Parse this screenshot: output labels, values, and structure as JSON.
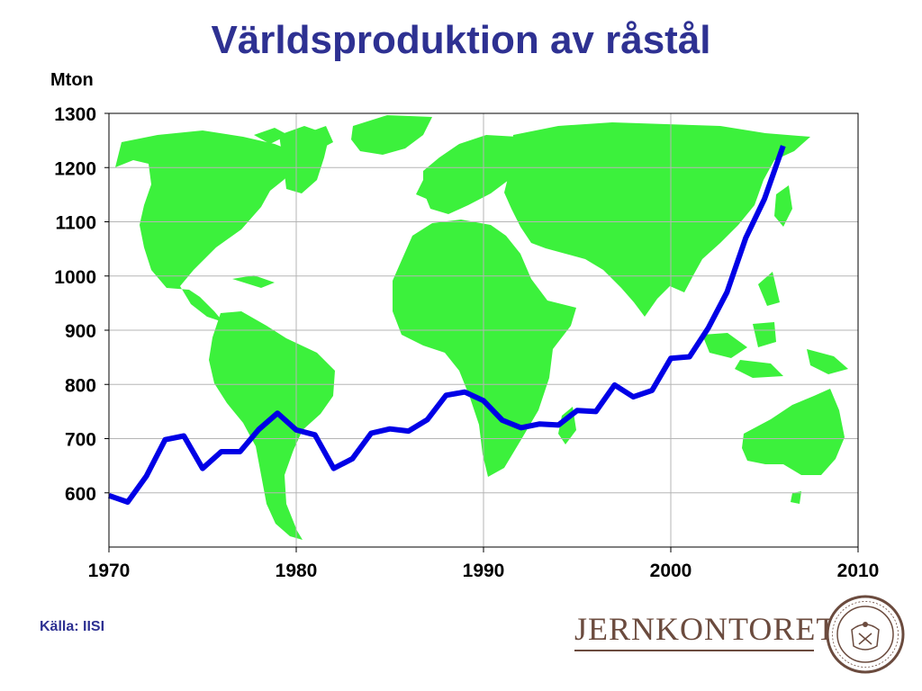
{
  "title": "Världsproduktion av råstål",
  "source": "Källa: IISI",
  "logo": {
    "text": "JERNKONTORET",
    "seal_text": "JERNCONTOIRETS SIGILL"
  },
  "colors": {
    "title": "#2e3192",
    "line": "#0000e6",
    "land": "#3cf13c",
    "logo": "#6b4b3e"
  },
  "chart_data": {
    "type": "line",
    "title": "Världsproduktion av råstål",
    "ylabel": "Mton",
    "xlabel": "",
    "xlim": [
      1970,
      2010
    ],
    "ylim": [
      500,
      1300
    ],
    "xticks": [
      1970,
      1980,
      1990,
      2000,
      2010
    ],
    "yticks": [
      600,
      700,
      800,
      900,
      1000,
      1100,
      1200,
      1300
    ],
    "grid": true,
    "background": "world-map",
    "series": [
      {
        "x": [
          1970,
          1971,
          1972,
          1973,
          1974,
          1975,
          1976,
          1977,
          1978,
          1979,
          1980,
          1981,
          1982,
          1983,
          1984,
          1985,
          1986,
          1987,
          1988,
          1989,
          1990,
          1991,
          1992,
          1993,
          1994,
          1995,
          1996,
          1997,
          1998,
          1999,
          2000,
          2001,
          2002,
          2003,
          2004,
          2005,
          2006
        ],
        "y": [
          595,
          583,
          631,
          698,
          705,
          645,
          676,
          676,
          717,
          747,
          716,
          707,
          645,
          663,
          710,
          718,
          714,
          735,
          780,
          786,
          770,
          734,
          720,
          727,
          725,
          752,
          750,
          799,
          777,
          789,
          848,
          851,
          904,
          970,
          1070,
          1142,
          1240
        ]
      }
    ]
  }
}
